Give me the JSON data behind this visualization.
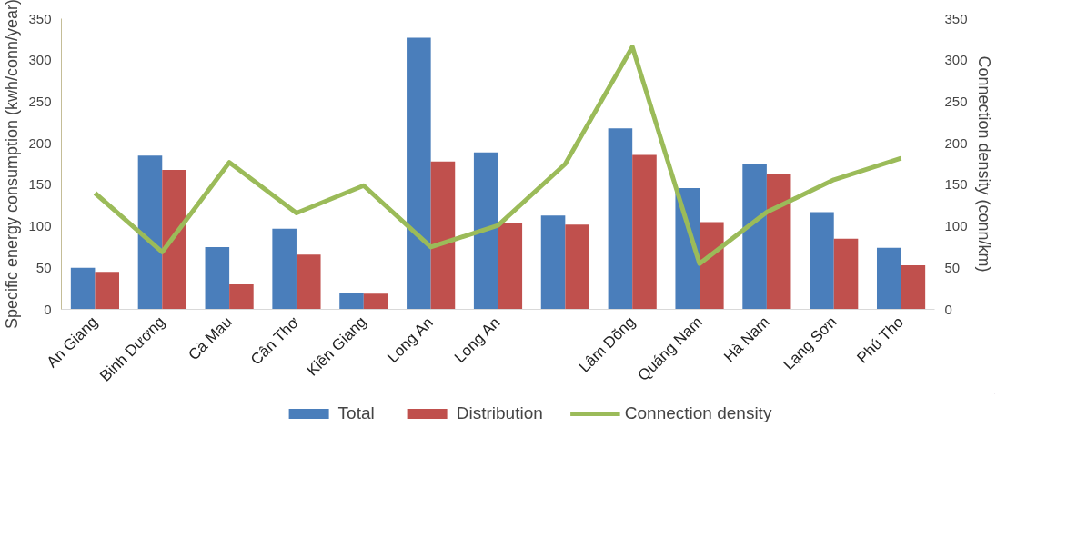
{
  "chart_data": {
    "type": "bar",
    "categories": [
      "An Giang",
      "Binh Dương",
      "Cà Mau",
      "Cân Thơ",
      "Kiên Giang",
      "Long An",
      "Long An",
      null,
      "Lâm Dõng",
      "Quáng Nam",
      "Hà Nam",
      "Lạng Sơn",
      "Phú Tho"
    ],
    "series": [
      {
        "name": "Total",
        "color": "#4a7ebb",
        "values": [
          50,
          185,
          75,
          97,
          20,
          327,
          189,
          113,
          218,
          146,
          175,
          117,
          74
        ]
      },
      {
        "name": "Distribution",
        "color": "#c0504d",
        "values": [
          45,
          168,
          30,
          66,
          19,
          178,
          104,
          102,
          186,
          105,
          163,
          85,
          53
        ]
      },
      {
        "name": "Connection density",
        "type": "line",
        "axis": "y2",
        "color": "#9bbb59",
        "values": [
          140,
          69,
          177,
          116,
          149,
          75,
          101,
          175,
          316,
          55,
          117,
          156,
          182
        ]
      }
    ],
    "ylabel": "Specific energy consumption (kwh/conn/year)",
    "y2label": "Connection density (conn/km)",
    "ylim": [
      0,
      350
    ],
    "yticks": [
      0,
      50,
      100,
      150,
      200,
      250,
      300,
      350
    ],
    "y2lim": [
      0,
      350
    ],
    "y2ticks": [
      0,
      50,
      100,
      150,
      200,
      250,
      300,
      350
    ],
    "legend": "bottom"
  }
}
